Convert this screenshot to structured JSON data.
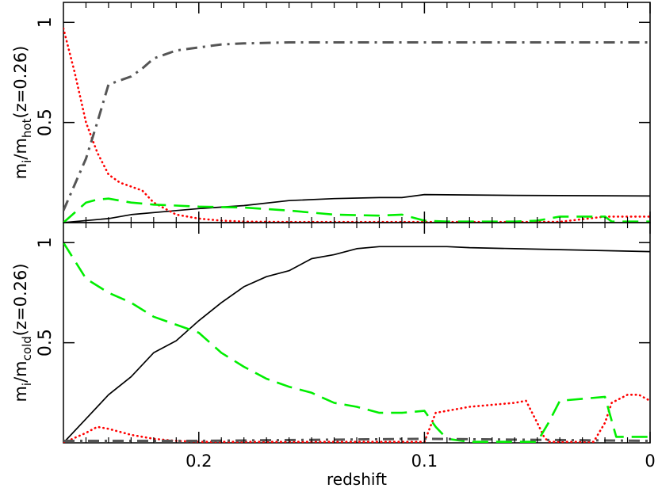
{
  "chart_data": [
    {
      "type": "line",
      "panel": "top",
      "ylabel_parts": {
        "m": "m",
        "sub_i": "i",
        "slash": "/m",
        "sub": "hot",
        "tail": "(z=0.26)"
      },
      "xlim": [
        0.26,
        0
      ],
      "ylim": [
        0,
        1.1
      ],
      "yticks": [
        {
          "v": 0.5,
          "label": "0.5"
        },
        {
          "v": 1,
          "label": "1"
        }
      ],
      "xticks": [
        0.2,
        0.1,
        0
      ],
      "minor_xticks": [
        0.25,
        0.24,
        0.23,
        0.22,
        0.21,
        0.19,
        0.18,
        0.17,
        0.16,
        0.15,
        0.14,
        0.13,
        0.12,
        0.11,
        0.09,
        0.08,
        0.07,
        0.06,
        0.05,
        0.04,
        0.03,
        0.02,
        0.01
      ],
      "series": [
        {
          "style": "solid",
          "color": "#000000",
          "x": [
            0.26,
            0.24,
            0.23,
            0.21,
            0.2,
            0.18,
            0.16,
            0.14,
            0.12,
            0.11,
            0.1,
            0.08,
            0.06,
            0.04,
            0.02,
            0
          ],
          "y": [
            0,
            0.02,
            0.04,
            0.06,
            0.07,
            0.085,
            0.11,
            0.12,
            0.125,
            0.125,
            0.14,
            0.138,
            0.136,
            0.135,
            0.134,
            0.133
          ]
        },
        {
          "style": "dotted",
          "color": "#ff0000",
          "x": [
            0.26,
            0.255,
            0.25,
            0.245,
            0.24,
            0.235,
            0.23,
            0.225,
            0.22,
            0.21,
            0.2,
            0.19,
            0.18,
            0.17,
            0.16,
            0.15,
            0.14,
            0.12,
            0.1,
            0.08,
            0.06,
            0.04,
            0.02,
            0
          ],
          "y": [
            0.97,
            0.75,
            0.5,
            0.35,
            0.24,
            0.2,
            0.18,
            0.16,
            0.1,
            0.04,
            0.02,
            0.01,
            0.005,
            0.004,
            0.003,
            0.003,
            0.003,
            0.003,
            0.003,
            0.003,
            0.003,
            0.004,
            0.03,
            0.03
          ]
        },
        {
          "style": "dashed",
          "color": "#00ee00",
          "x": [
            0.26,
            0.25,
            0.245,
            0.24,
            0.23,
            0.22,
            0.21,
            0.2,
            0.18,
            0.16,
            0.14,
            0.12,
            0.11,
            0.1,
            0.09,
            0.08,
            0.07,
            0.06,
            0.05,
            0.04,
            0.03,
            0.02,
            0.017,
            0
          ],
          "y": [
            0,
            0.1,
            0.115,
            0.12,
            0.1,
            0.09,
            0.085,
            0.08,
            0.075,
            0.06,
            0.04,
            0.035,
            0.04,
            0.01,
            0.005,
            0.005,
            0.005,
            0.005,
            0.01,
            0.03,
            0.03,
            0.03,
            0.005,
            0.005
          ]
        },
        {
          "style": "dashdot",
          "color": "#555555",
          "x": [
            0.26,
            0.25,
            0.245,
            0.24,
            0.235,
            0.23,
            0.225,
            0.22,
            0.21,
            0.2,
            0.19,
            0.18,
            0.16,
            0.14,
            0.12,
            0.1,
            0.08,
            0.06,
            0.04,
            0.02,
            0
          ],
          "y": [
            0.06,
            0.32,
            0.5,
            0.69,
            0.71,
            0.73,
            0.77,
            0.82,
            0.86,
            0.875,
            0.89,
            0.895,
            0.9,
            0.9,
            0.9,
            0.9,
            0.9,
            0.9,
            0.9,
            0.9,
            0.9
          ]
        }
      ]
    },
    {
      "type": "line",
      "panel": "bottom",
      "xlabel": "redshift",
      "ylabel_parts": {
        "m": "m",
        "sub_i": "i",
        "slash": "/m",
        "sub": "cold",
        "tail": "(z=0.26)"
      },
      "xlim": [
        0.26,
        0
      ],
      "ylim": [
        0,
        1.1
      ],
      "yticks": [
        {
          "v": 0.5,
          "label": "0.5"
        },
        {
          "v": 1,
          "label": "1"
        }
      ],
      "xticks": [
        {
          "v": 0.2,
          "label": "0.2"
        },
        {
          "v": 0.1,
          "label": "0.1"
        },
        {
          "v": 0,
          "label": "0"
        }
      ],
      "minor_xticks": [
        0.25,
        0.24,
        0.23,
        0.22,
        0.21,
        0.19,
        0.18,
        0.17,
        0.16,
        0.15,
        0.14,
        0.13,
        0.12,
        0.11,
        0.09,
        0.08,
        0.07,
        0.06,
        0.05,
        0.04,
        0.03,
        0.02,
        0.01
      ],
      "series": [
        {
          "style": "solid",
          "color": "#000000",
          "x": [
            0.26,
            0.25,
            0.24,
            0.23,
            0.22,
            0.21,
            0.2,
            0.19,
            0.18,
            0.17,
            0.16,
            0.15,
            0.14,
            0.13,
            0.12,
            0.11,
            0.1,
            0.09,
            0.08,
            0.06,
            0.04,
            0.02,
            0
          ],
          "y": [
            0,
            0.12,
            0.24,
            0.33,
            0.45,
            0.51,
            0.61,
            0.7,
            0.78,
            0.83,
            0.86,
            0.92,
            0.94,
            0.97,
            0.98,
            0.98,
            0.98,
            0.98,
            0.975,
            0.97,
            0.965,
            0.96,
            0.955
          ]
        },
        {
          "style": "dotted",
          "color": "#ff0000",
          "x": [
            0.26,
            0.25,
            0.245,
            0.24,
            0.23,
            0.22,
            0.21,
            0.2,
            0.18,
            0.16,
            0.14,
            0.12,
            0.11,
            0.1,
            0.095,
            0.09,
            0.08,
            0.07,
            0.06,
            0.055,
            0.05,
            0.047,
            0.045,
            0.04,
            0.035,
            0.03,
            0.025,
            0.02,
            0.017,
            0.01,
            0.005,
            0
          ],
          "y": [
            0,
            0.05,
            0.08,
            0.07,
            0.04,
            0.02,
            0.01,
            0.005,
            0.005,
            0.005,
            0.005,
            0.005,
            0.005,
            0.005,
            0.15,
            0.16,
            0.18,
            0.19,
            0.2,
            0.21,
            0.1,
            0.03,
            0.005,
            0.005,
            0.005,
            0.005,
            0.005,
            0.1,
            0.2,
            0.24,
            0.24,
            0.21
          ]
        },
        {
          "style": "dashed",
          "color": "#00ee00",
          "x": [
            0.26,
            0.25,
            0.24,
            0.23,
            0.22,
            0.21,
            0.2,
            0.19,
            0.18,
            0.17,
            0.16,
            0.15,
            0.14,
            0.13,
            0.12,
            0.11,
            0.1,
            0.095,
            0.09,
            0.08,
            0.07,
            0.06,
            0.05,
            0.045,
            0.04,
            0.03,
            0.02,
            0.015,
            0
          ],
          "y": [
            1.0,
            0.82,
            0.75,
            0.7,
            0.63,
            0.59,
            0.55,
            0.45,
            0.38,
            0.32,
            0.28,
            0.25,
            0.2,
            0.18,
            0.15,
            0.15,
            0.16,
            0.08,
            0.02,
            0.005,
            0.005,
            0.005,
            0.005,
            0.1,
            0.21,
            0.22,
            0.23,
            0.03,
            0.03
          ]
        },
        {
          "style": "dashdot",
          "color": "#555555",
          "x": [
            0.26,
            0.2,
            0.1,
            0
          ],
          "y": [
            0.01,
            0.01,
            0.02,
            0.01
          ]
        }
      ]
    }
  ]
}
